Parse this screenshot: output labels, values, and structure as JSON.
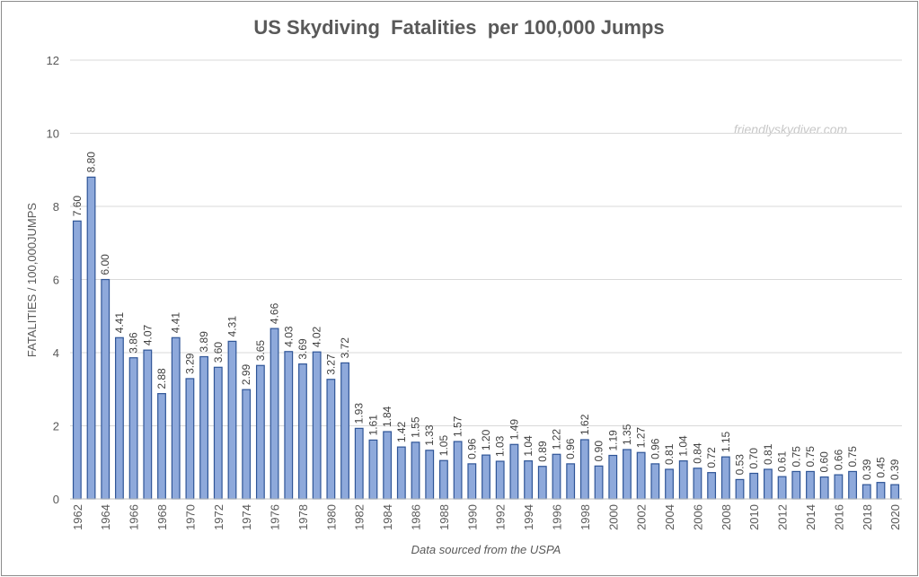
{
  "chart_data": {
    "type": "bar",
    "title": "US Skydiving  Fatalities  per 100,000 Jumps",
    "ylabel": "FATALITIES / 100,000JUMPS",
    "xlabel": "",
    "note": "Data sourced from the USPA",
    "watermark": "friendlyskydiver.com",
    "ylim": [
      0,
      12
    ],
    "yticks": [
      0,
      2,
      4,
      6,
      8,
      10,
      12
    ],
    "grid": true,
    "bar_color": "#8ea9db",
    "bar_edge_color": "#2f5597",
    "categories": [
      "1962",
      "1963",
      "1964",
      "1965",
      "1966",
      "1967",
      "1968",
      "1969",
      "1970",
      "1971",
      "1972",
      "1973",
      "1974",
      "1975",
      "1976",
      "1977",
      "1978",
      "1979",
      "1980",
      "1981",
      "1982",
      "1983",
      "1984",
      "1985",
      "1986",
      "1987",
      "1988",
      "1989",
      "1990",
      "1991",
      "1992",
      "1993",
      "1994",
      "1995",
      "1996",
      "1997",
      "1998",
      "1999",
      "2000",
      "2001",
      "2002",
      "2003",
      "2004",
      "2005",
      "2006",
      "2007",
      "2008",
      "2009",
      "2010",
      "2011",
      "2012",
      "2013",
      "2014",
      "2015",
      "2016",
      "2017",
      "2018",
      "2019",
      "2020"
    ],
    "values": [
      7.6,
      8.8,
      6.0,
      4.41,
      3.86,
      4.07,
      2.88,
      4.41,
      3.29,
      3.89,
      3.6,
      4.31,
      2.99,
      3.65,
      4.66,
      4.03,
      3.69,
      4.02,
      3.27,
      3.72,
      1.93,
      1.61,
      1.84,
      1.42,
      1.55,
      1.33,
      1.05,
      1.57,
      0.96,
      1.2,
      1.03,
      1.49,
      1.04,
      0.89,
      1.22,
      0.96,
      1.62,
      0.9,
      1.19,
      1.35,
      1.27,
      0.96,
      0.81,
      1.04,
      0.84,
      0.72,
      1.15,
      0.53,
      0.7,
      0.81,
      0.61,
      0.75,
      0.75,
      0.6,
      0.66,
      0.75,
      0.39,
      0.45,
      0.39
    ],
    "data_labels": [
      "7.60",
      "8.80",
      "6.00",
      "4.41",
      "3.86",
      "4.07",
      "2.88",
      "4.41",
      "3.29",
      "3.89",
      "3.60",
      "4.31",
      "2.99",
      "3.65",
      "4.66",
      "4.03",
      "3.69",
      "4.02",
      "3.27",
      "3.72",
      "1.93",
      "1.61",
      "1.84",
      "1.42",
      "1.55",
      "1.33",
      "1.05",
      "1.57",
      "0.96",
      "1.20",
      "1.03",
      "1.49",
      "1.04",
      "0.89",
      "1.22",
      "0.96",
      "1.62",
      "0.90",
      "1.19",
      "1.35",
      "1.27",
      "0.96",
      "0.81",
      "1.04",
      "0.84",
      "0.72",
      "1.15",
      "0.53",
      "0.70",
      "0.81",
      "0.61",
      "0.75",
      "0.75",
      "0.60",
      "0.66",
      "0.75",
      "0.39",
      "0.45",
      "0.39"
    ],
    "x_tick_labels": [
      "1962",
      "",
      "1964",
      "",
      "1966",
      "",
      "1968",
      "",
      "1970",
      "",
      "1972",
      "",
      "1974",
      "",
      "1976",
      "",
      "1978",
      "",
      "1980",
      "",
      "1982",
      "",
      "1984",
      "",
      "1986",
      "",
      "1988",
      "",
      "1990",
      "",
      "1992",
      "",
      "1994",
      "",
      "1996",
      "",
      "1998",
      "",
      "2000",
      "",
      "2002",
      "",
      "2004",
      "",
      "2006",
      "",
      "2008",
      "",
      "2010",
      "",
      "2012",
      "",
      "2014",
      "",
      "2016",
      "",
      "2018",
      "",
      "2020"
    ]
  }
}
